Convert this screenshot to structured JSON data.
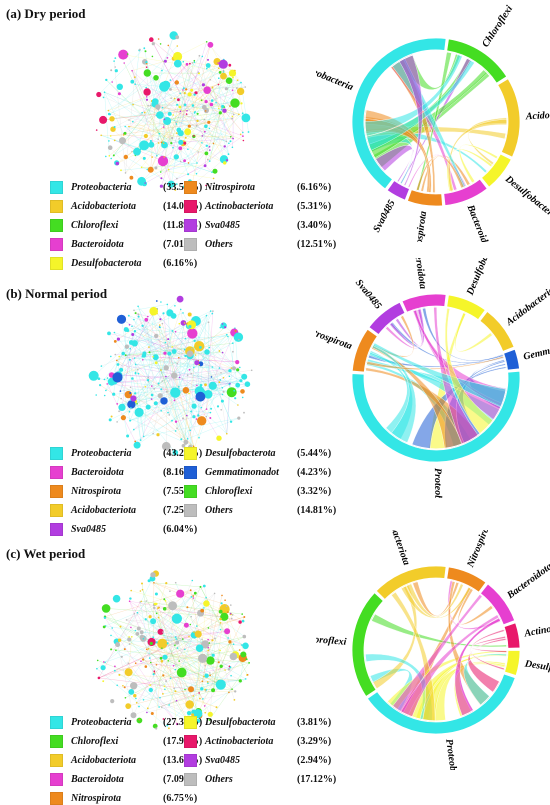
{
  "colors": {
    "Proteobacteria": "#33e6e6",
    "Acidobacteriota": "#f2cc2a",
    "Chloroflexi": "#44dd22",
    "Bacteroidota": "#e63fd0",
    "Desulfobacterota": "#f5f52a",
    "Nitrospirota": "#ee8a1e",
    "Actinobacteriota": "#e8186a",
    "Sva0485": "#b23de0",
    "Gemmatimonadot": "#1f5fd6",
    "Others": "#bdbdbd"
  },
  "panels": [
    {
      "title": "(a) Dry period",
      "legend": [
        {
          "name": "Proteobacteria",
          "pct": "(33.55%)"
        },
        {
          "name": "Acidobacteriota",
          "pct": "(14.01%)"
        },
        {
          "name": "Chloroflexi",
          "pct": "(11.89%)"
        },
        {
          "name": "Bacteroidota",
          "pct": "(7.01%)"
        },
        {
          "name": "Desulfobacterota",
          "pct": "(6.16%)"
        },
        {
          "name": "Nitrospirota",
          "pct": "(6.16%)"
        },
        {
          "name": "Actinobacteriota",
          "pct": "(5.31%)"
        },
        {
          "name": "Sva0485",
          "pct": "(3.40%)"
        },
        {
          "name": "Others",
          "pct": "(12.51%)"
        }
      ],
      "chord_segments": [
        {
          "name": "Chloroflexi",
          "value": 14
        },
        {
          "name": "Acidobacteriota",
          "value": 16
        },
        {
          "name": "Desulfobacterota",
          "value": 7
        },
        {
          "name": "Bacteroidota",
          "value": 9
        },
        {
          "name": "Nitrospirota",
          "value": 7
        },
        {
          "name": "Sva0485",
          "value": 4
        },
        {
          "name": "Proteobacteria",
          "value": 43
        }
      ]
    },
    {
      "title": "(b) Normal period",
      "legend": [
        {
          "name": "Proteobacteria",
          "pct": "(43.20%)"
        },
        {
          "name": "Bacteroidota",
          "pct": "(8.16%)"
        },
        {
          "name": "Nitrospirota",
          "pct": "(7.55%)"
        },
        {
          "name": "Acidobacteriota",
          "pct": "(7.25%)"
        },
        {
          "name": "Sva0485",
          "pct": "(6.04%)"
        },
        {
          "name": "Desulfobacterota",
          "pct": "(5.44%)"
        },
        {
          "name": "Gemmatimonadot",
          "pct": "(4.23%)"
        },
        {
          "name": "Chloroflexi",
          "pct": "(3.32%)"
        },
        {
          "name": "Others",
          "pct": "(14.81%)"
        }
      ],
      "chord_segments": [
        {
          "name": "Desulfobacterota",
          "value": 8
        },
        {
          "name": "Acidobacteriota",
          "value": 9
        },
        {
          "name": "Gemmatimonadot",
          "value": 4
        },
        {
          "name": "Proteobacteria",
          "value": 55
        },
        {
          "name": "Nitrospirota",
          "value": 9
        },
        {
          "name": "Sva0485",
          "value": 8
        },
        {
          "name": "Bacteroidota",
          "value": 9
        }
      ]
    },
    {
      "title": "(c) Wet period",
      "legend": [
        {
          "name": "Proteobacteria",
          "pct": "(27.34%)"
        },
        {
          "name": "Chloroflexi",
          "pct": "(17.99%)"
        },
        {
          "name": "Acidobacteriota",
          "pct": "(13.67%)"
        },
        {
          "name": "Bacteroidota",
          "pct": "(7.09%)"
        },
        {
          "name": "Nitrospirota",
          "pct": "(6.75%)"
        },
        {
          "name": "Desulfobacterota",
          "pct": "(3.81%)"
        },
        {
          "name": "Actinobacteriota",
          "pct": "(3.29%)"
        },
        {
          "name": "Sva0485",
          "pct": "(2.94%)"
        },
        {
          "name": "Others",
          "pct": "(17.12%)"
        }
      ],
      "chord_segments": [
        {
          "name": "Nitrospirota",
          "value": 8
        },
        {
          "name": "Bacteroidota",
          "value": 9
        },
        {
          "name": "Actinobacteriota",
          "value": 5
        },
        {
          "name": "Desulfobacterota",
          "value": 5
        },
        {
          "name": "Proteobacteria",
          "value": 36
        },
        {
          "name": "Chloroflexi",
          "value": 22
        },
        {
          "name": "Acidobacteriota",
          "value": 15
        }
      ]
    }
  ]
}
